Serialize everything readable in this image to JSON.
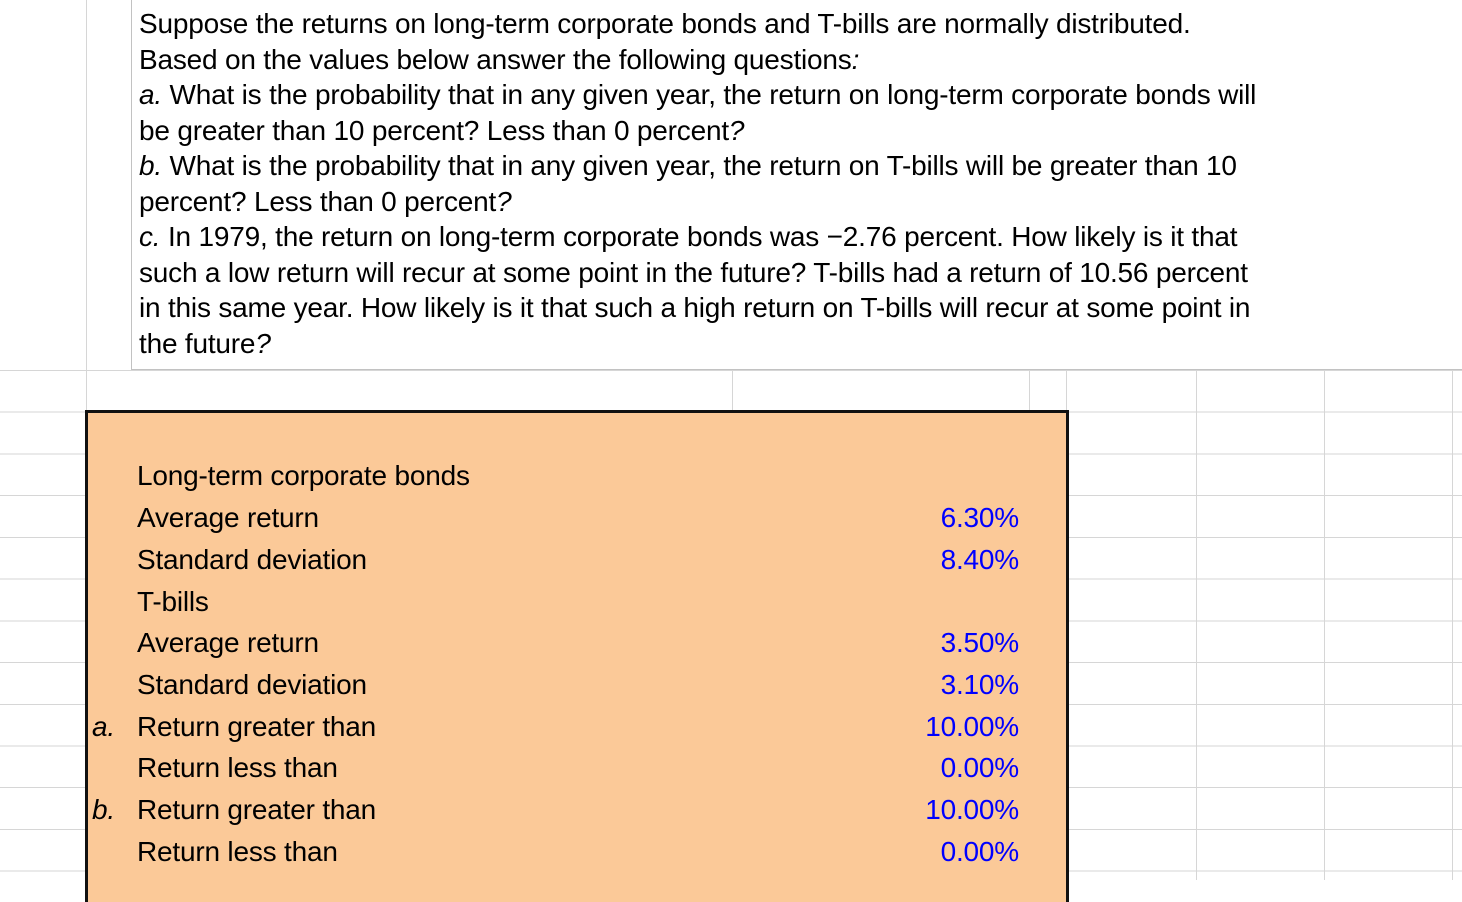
{
  "colors": {
    "panel_fill": "#fbc998",
    "panel_border": "#111111",
    "value_text": "#0000ff",
    "grid_line": "#d6d6d6",
    "textbox_border": "#c2c2c2"
  },
  "question": {
    "lines": [
      {
        "segments": [
          {
            "t": "Suppose the returns on long-term corporate bonds and T-bills are normally distributed.",
            "i": false
          }
        ]
      },
      {
        "segments": [
          {
            "t": "Based on the values below answer the following questions",
            "i": false
          },
          {
            "t": ":",
            "i": true
          }
        ]
      },
      {
        "segments": [
          {
            "t": "a.",
            "i": true
          },
          {
            "t": " What is the probability that in any given year, the return on long-term corporate bonds will",
            "i": false
          }
        ]
      },
      {
        "segments": [
          {
            "t": "be greater than 10 percent? Less than 0 percent",
            "i": false
          },
          {
            "t": "?",
            "i": true
          }
        ]
      },
      {
        "segments": [
          {
            "t": "b.",
            "i": true
          },
          {
            "t": " What is the probability that in any given year, the return on T-bills will be greater than 10",
            "i": false
          }
        ]
      },
      {
        "segments": [
          {
            "t": "percent? Less than 0 percent",
            "i": false
          },
          {
            "t": "?",
            "i": true
          }
        ]
      },
      {
        "segments": [
          {
            "t": "c.",
            "i": true
          },
          {
            "t": " In 1979, the return on long-term corporate bonds was −2.76 percent. How likely is it that",
            "i": false
          }
        ]
      },
      {
        "segments": [
          {
            "t": "such a low return will recur at some point in the future? T-bills had a return of 10.56 percent",
            "i": false
          }
        ]
      },
      {
        "segments": [
          {
            "t": "in this same year. How likely is it that such a high return on T-bills will recur at some point in",
            "i": false
          }
        ]
      },
      {
        "segments": [
          {
            "t": "the future",
            "i": false
          },
          {
            "t": "?",
            "i": true
          }
        ]
      }
    ]
  },
  "panel": {
    "rows": [
      {
        "marker": "",
        "label": "",
        "value": ""
      },
      {
        "marker": "",
        "label": "Long-term corporate bonds",
        "value": ""
      },
      {
        "marker": "",
        "label": "Average return",
        "value": "6.30%"
      },
      {
        "marker": "",
        "label": "Standard deviation",
        "value": "8.40%"
      },
      {
        "marker": "",
        "label": "T-bills",
        "value": ""
      },
      {
        "marker": "",
        "label": "Average return",
        "value": "3.50%"
      },
      {
        "marker": "",
        "label": "Standard deviation",
        "value": "3.10%"
      },
      {
        "marker": "a.",
        "label": "Return greater than",
        "value": "10.00%"
      },
      {
        "marker": "",
        "label": "Return less than",
        "value": "0.00%"
      },
      {
        "marker": "b.",
        "label": "Return greater than",
        "value": "10.00%"
      },
      {
        "marker": "",
        "label": "Return less than",
        "value": "0.00%"
      }
    ]
  }
}
